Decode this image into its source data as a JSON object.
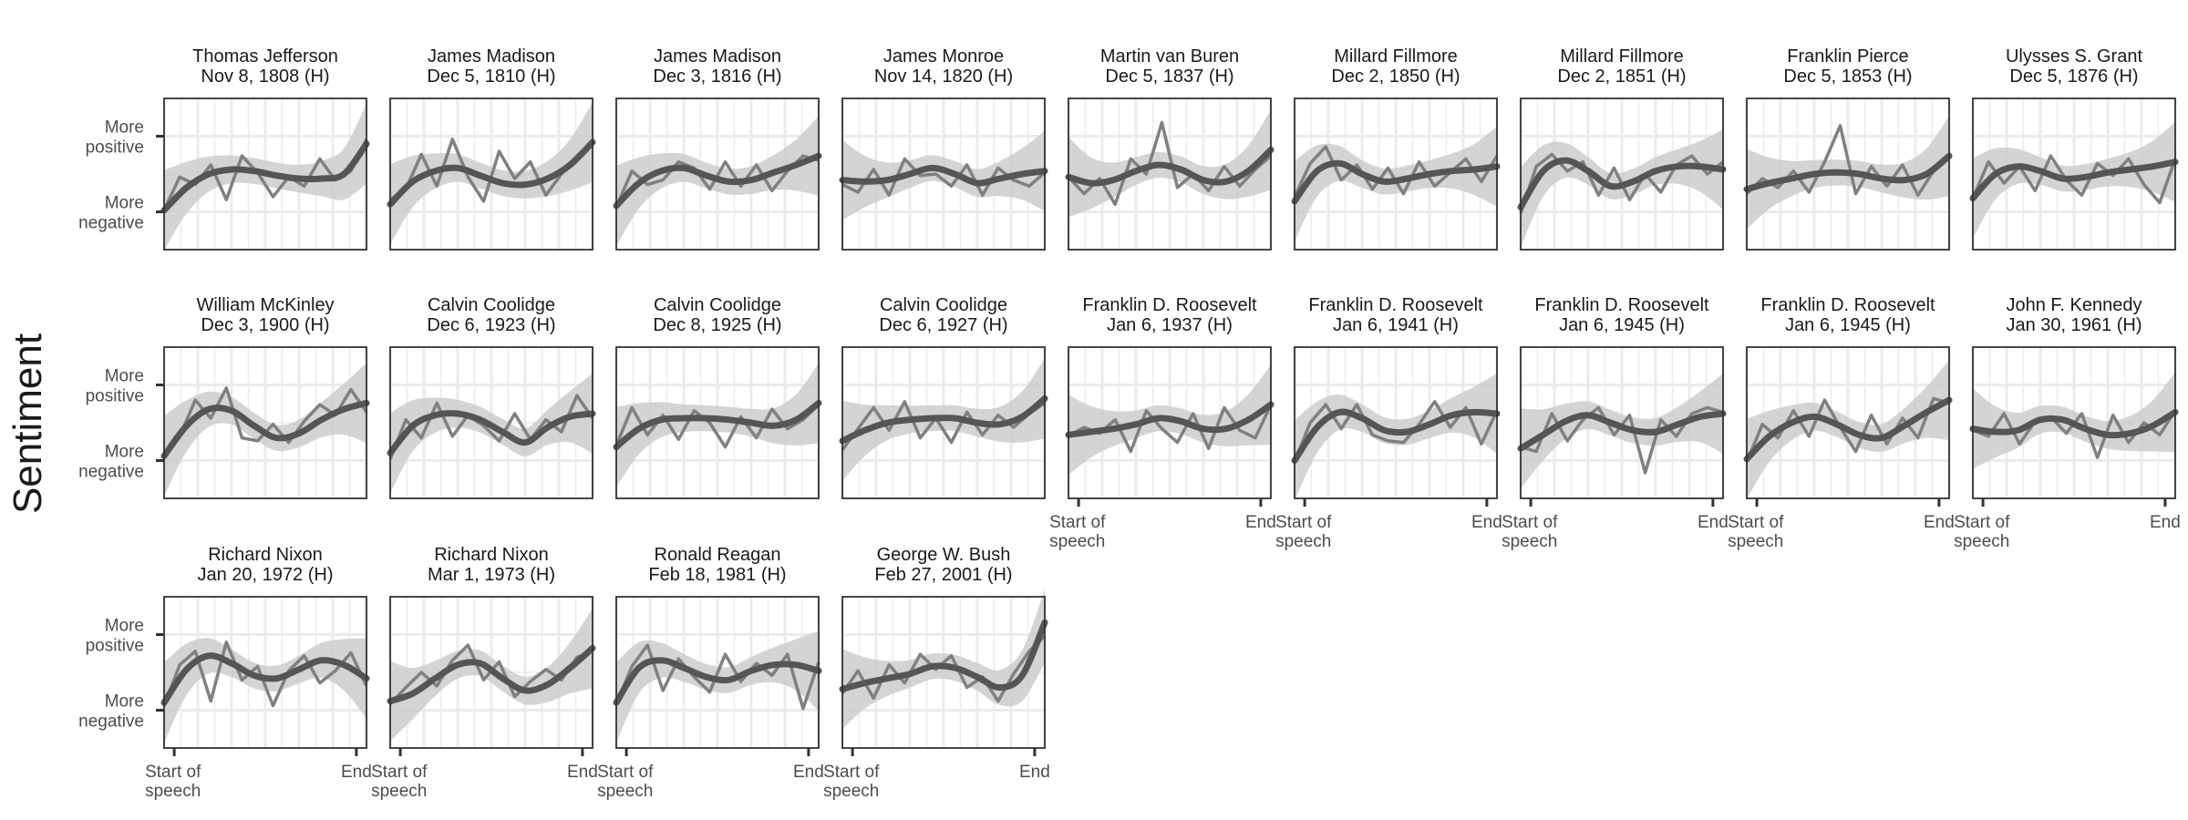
{
  "chart_data": {
    "type": "line",
    "facet_layout": "wrap, 3 rows x 9 columns",
    "ylabel": "Sentiment",
    "xlabel": "",
    "y_tick_labels": [
      "More\npositive",
      "More\nnegative"
    ],
    "x_tick_labels": [
      "Start of\nspeech",
      "End"
    ],
    "x_ticks": [
      0.05,
      0.95
    ],
    "y_ticks": [
      0.75,
      0.25
    ],
    "ylim": [
      0,
      1
    ],
    "xlim": [
      0,
      1
    ],
    "grid": true,
    "series_styles": {
      "raw": "thin grey line",
      "smooth": "thick dark grey loess curve with light grey confidence band"
    },
    "colors": {
      "raw": "#808080",
      "smooth": "#555555",
      "band": "#cccccc",
      "grid": "#ebebeb",
      "frame": "#333333"
    },
    "panels": [
      {
        "name": "Thomas Jefferson",
        "date": "Nov  8, 1808 (H)",
        "raw": [
          0.26,
          0.48,
          0.43,
          0.56,
          0.33,
          0.62,
          0.51,
          0.35,
          0.48,
          0.42,
          0.6,
          0.46,
          0.52,
          0.73
        ],
        "smooth": [
          0.26,
          0.41,
          0.5,
          0.53,
          0.52,
          0.49,
          0.47,
          0.47,
          0.5,
          0.7
        ]
      },
      {
        "name": "James Madison",
        "date": "Dec  5, 1810 (H)",
        "raw": [
          0.33,
          0.4,
          0.63,
          0.42,
          0.73,
          0.48,
          0.32,
          0.65,
          0.47,
          0.58,
          0.36,
          0.5,
          0.62,
          0.71
        ],
        "smooth": [
          0.3,
          0.45,
          0.52,
          0.54,
          0.49,
          0.44,
          0.43,
          0.47,
          0.56,
          0.71
        ]
      },
      {
        "name": "James Madison",
        "date": "Dec  3, 1816 (H)",
        "raw": [
          0.28,
          0.52,
          0.43,
          0.46,
          0.58,
          0.54,
          0.4,
          0.58,
          0.42,
          0.56,
          0.39,
          0.52,
          0.62,
          0.59
        ],
        "smooth": [
          0.29,
          0.44,
          0.52,
          0.54,
          0.49,
          0.45,
          0.46,
          0.51,
          0.56,
          0.62
        ]
      },
      {
        "name": "James Monroe",
        "date": "Nov 14, 1820 (H)",
        "raw": [
          0.43,
          0.38,
          0.53,
          0.36,
          0.6,
          0.49,
          0.5,
          0.42,
          0.56,
          0.36,
          0.54,
          0.46,
          0.42,
          0.51
        ],
        "smooth": [
          0.46,
          0.45,
          0.46,
          0.5,
          0.54,
          0.5,
          0.44,
          0.47,
          0.5,
          0.52
        ]
      },
      {
        "name": "Martin van Buren",
        "date": "Dec  5, 1837 (H)",
        "raw": [
          0.48,
          0.37,
          0.47,
          0.3,
          0.6,
          0.5,
          0.84,
          0.41,
          0.5,
          0.39,
          0.55,
          0.42,
          0.53,
          0.62
        ],
        "smooth": [
          0.48,
          0.44,
          0.46,
          0.52,
          0.56,
          0.53,
          0.46,
          0.45,
          0.52,
          0.66
        ]
      },
      {
        "name": "Millard Fillmore",
        "date": "Dec  2, 1850 (H)",
        "raw": [
          0.35,
          0.57,
          0.68,
          0.46,
          0.56,
          0.4,
          0.54,
          0.37,
          0.58,
          0.42,
          0.51,
          0.6,
          0.45,
          0.62
        ],
        "smooth": [
          0.32,
          0.52,
          0.57,
          0.5,
          0.45,
          0.47,
          0.5,
          0.52,
          0.53,
          0.55
        ]
      },
      {
        "name": "Millard Fillmore",
        "date": "Dec  2, 1851 (H)",
        "raw": [
          0.24,
          0.55,
          0.63,
          0.52,
          0.58,
          0.36,
          0.54,
          0.33,
          0.5,
          0.38,
          0.56,
          0.62,
          0.5,
          0.58
        ],
        "smooth": [
          0.28,
          0.52,
          0.59,
          0.52,
          0.42,
          0.45,
          0.52,
          0.55,
          0.55,
          0.53
        ]
      },
      {
        "name": "Franklin Pierce",
        "date": "Dec  5, 1853 (H)",
        "raw": [
          0.37,
          0.47,
          0.41,
          0.52,
          0.38,
          0.58,
          0.82,
          0.37,
          0.55,
          0.42,
          0.56,
          0.36,
          0.52,
          0.62
        ],
        "smooth": [
          0.4,
          0.44,
          0.47,
          0.5,
          0.51,
          0.5,
          0.47,
          0.46,
          0.5,
          0.62
        ]
      },
      {
        "name": "Ulysses S. Grant",
        "date": "Dec  5, 1876 (H)",
        "raw": [
          0.34,
          0.58,
          0.44,
          0.55,
          0.39,
          0.62,
          0.46,
          0.36,
          0.57,
          0.49,
          0.6,
          0.43,
          0.31,
          0.6
        ],
        "smooth": [
          0.34,
          0.5,
          0.55,
          0.52,
          0.47,
          0.48,
          0.51,
          0.53,
          0.55,
          0.58
        ]
      },
      {
        "name": "William McKinley",
        "date": "Dec  3, 1900 (H)",
        "raw": [
          0.28,
          0.41,
          0.65,
          0.53,
          0.73,
          0.4,
          0.38,
          0.49,
          0.37,
          0.51,
          0.62,
          0.55,
          0.72,
          0.57
        ],
        "smooth": [
          0.28,
          0.48,
          0.59,
          0.58,
          0.48,
          0.4,
          0.43,
          0.52,
          0.59,
          0.63
        ]
      },
      {
        "name": "Calvin Coolidge",
        "date": "Dec  6, 1923 (H)",
        "raw": [
          0.26,
          0.52,
          0.4,
          0.63,
          0.41,
          0.55,
          0.48,
          0.38,
          0.56,
          0.39,
          0.52,
          0.44,
          0.68,
          0.53
        ],
        "smooth": [
          0.3,
          0.48,
          0.55,
          0.56,
          0.52,
          0.44,
          0.37,
          0.47,
          0.54,
          0.56
        ]
      },
      {
        "name": "Calvin Coolidge",
        "date": "Dec  8, 1925 (H)",
        "raw": [
          0.35,
          0.6,
          0.42,
          0.55,
          0.39,
          0.58,
          0.5,
          0.34,
          0.54,
          0.4,
          0.59,
          0.46,
          0.52,
          0.62
        ],
        "smooth": [
          0.34,
          0.46,
          0.52,
          0.53,
          0.53,
          0.52,
          0.5,
          0.48,
          0.52,
          0.63
        ]
      },
      {
        "name": "Calvin Coolidge",
        "date": "Dec  6, 1927 (H)",
        "raw": [
          0.32,
          0.46,
          0.6,
          0.45,
          0.64,
          0.4,
          0.53,
          0.37,
          0.57,
          0.42,
          0.55,
          0.47,
          0.56,
          0.63
        ],
        "smooth": [
          0.38,
          0.45,
          0.5,
          0.52,
          0.53,
          0.53,
          0.5,
          0.49,
          0.54,
          0.66
        ]
      },
      {
        "name": "Franklin D. Roosevelt",
        "date": "Jan  6, 1937 (H)",
        "raw": [
          0.41,
          0.47,
          0.43,
          0.52,
          0.31,
          0.58,
          0.46,
          0.37,
          0.56,
          0.33,
          0.6,
          0.45,
          0.4,
          0.62
        ],
        "smooth": [
          0.42,
          0.44,
          0.46,
          0.49,
          0.53,
          0.51,
          0.46,
          0.46,
          0.52,
          0.62
        ]
      },
      {
        "name": "Franklin D. Roosevelt",
        "date": "Jan  6, 1941 (H)",
        "raw": [
          0.24,
          0.5,
          0.62,
          0.46,
          0.62,
          0.42,
          0.38,
          0.37,
          0.49,
          0.64,
          0.47,
          0.6,
          0.36,
          0.58
        ],
        "smooth": [
          0.25,
          0.47,
          0.57,
          0.53,
          0.45,
          0.44,
          0.49,
          0.55,
          0.57,
          0.56
        ]
      },
      {
        "name": "Franklin D. Roosevelt",
        "date": "Jan  6, 1945 (H)",
        "raw": [
          0.34,
          0.31,
          0.56,
          0.38,
          0.52,
          0.6,
          0.42,
          0.55,
          0.17,
          0.52,
          0.41,
          0.56,
          0.6,
          0.57
        ],
        "smooth": [
          0.33,
          0.42,
          0.51,
          0.55,
          0.5,
          0.45,
          0.44,
          0.49,
          0.54,
          0.56
        ]
      },
      {
        "name": "Franklin D. Roosevelt",
        "date": "Jan  6, 1945 (H)",
        "raw": [
          0.24,
          0.49,
          0.4,
          0.58,
          0.41,
          0.65,
          0.47,
          0.31,
          0.55,
          0.36,
          0.53,
          0.4,
          0.66,
          0.63
        ],
        "smooth": [
          0.26,
          0.41,
          0.5,
          0.54,
          0.49,
          0.42,
          0.4,
          0.48,
          0.57,
          0.65
        ]
      },
      {
        "name": "John F. Kennedy",
        "date": "Jan 30, 1961 (H)",
        "raw": [
          0.45,
          0.41,
          0.56,
          0.36,
          0.51,
          0.54,
          0.43,
          0.56,
          0.27,
          0.55,
          0.37,
          0.5,
          0.42,
          0.58
        ],
        "smooth": [
          0.46,
          0.44,
          0.45,
          0.52,
          0.52,
          0.46,
          0.42,
          0.43,
          0.48,
          0.57
        ]
      },
      {
        "name": "Richard Nixon",
        "date": "Jan 20, 1972 (H)",
        "raw": [
          0.28,
          0.55,
          0.64,
          0.31,
          0.7,
          0.45,
          0.54,
          0.28,
          0.51,
          0.61,
          0.43,
          0.51,
          0.63,
          0.41
        ],
        "smooth": [
          0.3,
          0.52,
          0.61,
          0.56,
          0.48,
          0.46,
          0.52,
          0.58,
          0.55,
          0.46
        ]
      },
      {
        "name": "Richard Nixon",
        "date": "Mar  1, 1973 (H)",
        "raw": [
          0.29,
          0.4,
          0.5,
          0.41,
          0.58,
          0.68,
          0.45,
          0.57,
          0.34,
          0.44,
          0.52,
          0.45,
          0.6,
          0.64
        ],
        "smooth": [
          0.31,
          0.36,
          0.46,
          0.55,
          0.56,
          0.46,
          0.38,
          0.42,
          0.53,
          0.66
        ]
      },
      {
        "name": "Ronald Reagan",
        "date": "Feb 18, 1981 (H)",
        "raw": [
          0.29,
          0.54,
          0.68,
          0.38,
          0.59,
          0.47,
          0.37,
          0.62,
          0.44,
          0.56,
          0.48,
          0.62,
          0.26,
          0.57
        ],
        "smooth": [
          0.3,
          0.53,
          0.58,
          0.53,
          0.47,
          0.45,
          0.51,
          0.55,
          0.55,
          0.51
        ]
      },
      {
        "name": "George W. Bush",
        "date": "Feb 27, 2001 (H)",
        "raw": [
          0.36,
          0.51,
          0.33,
          0.55,
          0.43,
          0.62,
          0.52,
          0.61,
          0.4,
          0.47,
          0.31,
          0.49,
          0.64,
          0.74
        ],
        "smooth": [
          0.39,
          0.43,
          0.46,
          0.49,
          0.54,
          0.53,
          0.47,
          0.4,
          0.48,
          0.83
        ]
      }
    ]
  }
}
